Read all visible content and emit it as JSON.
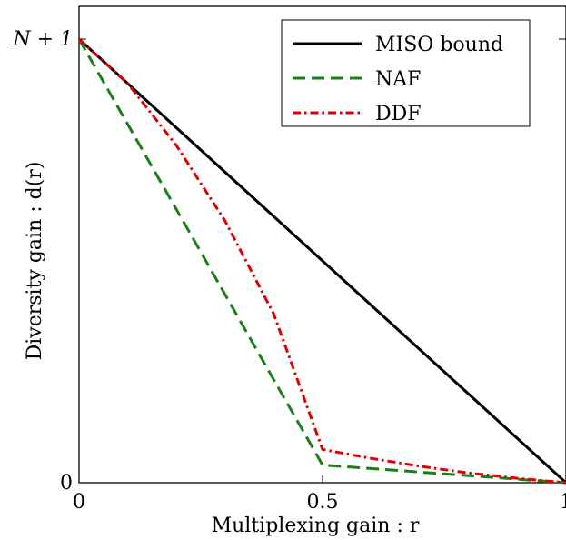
{
  "chart_data": {
    "type": "line",
    "xlabel": "Multiplexing gain : r",
    "ylabel": "Diversity gain : d(r)",
    "xlim": [
      0,
      1
    ],
    "ylim": [
      0,
      1
    ],
    "x_ticks": [
      {
        "value": 0,
        "label": "0"
      },
      {
        "value": 0.5,
        "label": "0.5"
      },
      {
        "value": 1,
        "label": "1"
      }
    ],
    "y_ticks": [
      {
        "value": 0,
        "label": "0"
      },
      {
        "value": 1,
        "label": "N + 1"
      }
    ],
    "grid": false,
    "legend_position": "top-right",
    "series": [
      {
        "name": "MISO bound",
        "color": "#000000",
        "dash": "solid",
        "points": [
          [
            0,
            1
          ],
          [
            1,
            0
          ]
        ]
      },
      {
        "name": "NAF",
        "color": "#1a7f1a",
        "dash": "dashed",
        "points": [
          [
            0,
            1
          ],
          [
            0.5,
            0.04
          ],
          [
            1,
            0
          ]
        ]
      },
      {
        "name": "DDF",
        "color": "#e00000",
        "dash": "dashdot",
        "points": [
          [
            0,
            1
          ],
          [
            0.1,
            0.9
          ],
          [
            0.2,
            0.76
          ],
          [
            0.3,
            0.59
          ],
          [
            0.4,
            0.38
          ],
          [
            0.5,
            0.075
          ],
          [
            0.6,
            0.055
          ],
          [
            0.7,
            0.037
          ],
          [
            0.8,
            0.022
          ],
          [
            0.9,
            0.01
          ],
          [
            1,
            0
          ]
        ]
      }
    ]
  }
}
